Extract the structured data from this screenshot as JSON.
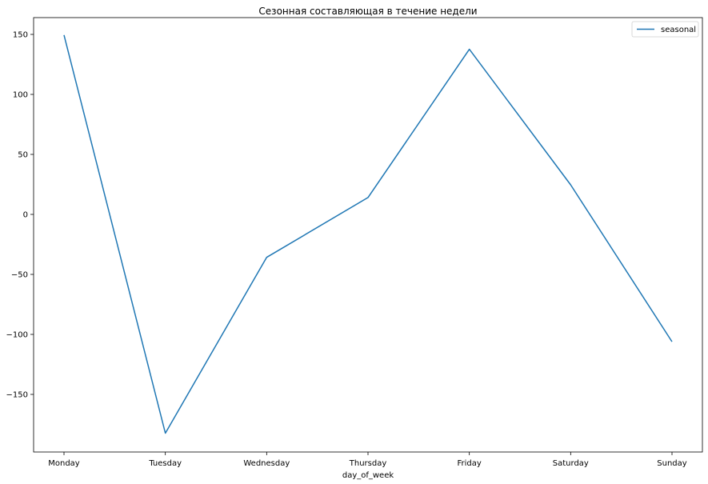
{
  "chart_data": {
    "type": "line",
    "title": "Сезонная составляющая в течение недели",
    "xlabel": "day_of_week",
    "ylabel": "",
    "categories": [
      "Monday",
      "Tuesday",
      "Wednesday",
      "Thursday",
      "Friday",
      "Saturday",
      "Sunday"
    ],
    "series": [
      {
        "name": "seasonal",
        "color": "#1f77b4",
        "values": [
          149.5,
          -182.3,
          -35.8,
          14.1,
          137.6,
          24.7,
          -106.1
        ]
      }
    ],
    "ylim": [
      -198,
      164
    ],
    "yticks": [
      150,
      100,
      50,
      0,
      -50,
      -100,
      -150
    ],
    "ytick_labels": [
      "150",
      "100",
      "50",
      "0",
      "−50",
      "−100",
      "−150"
    ],
    "grid": false,
    "legend_position": "upper right"
  }
}
